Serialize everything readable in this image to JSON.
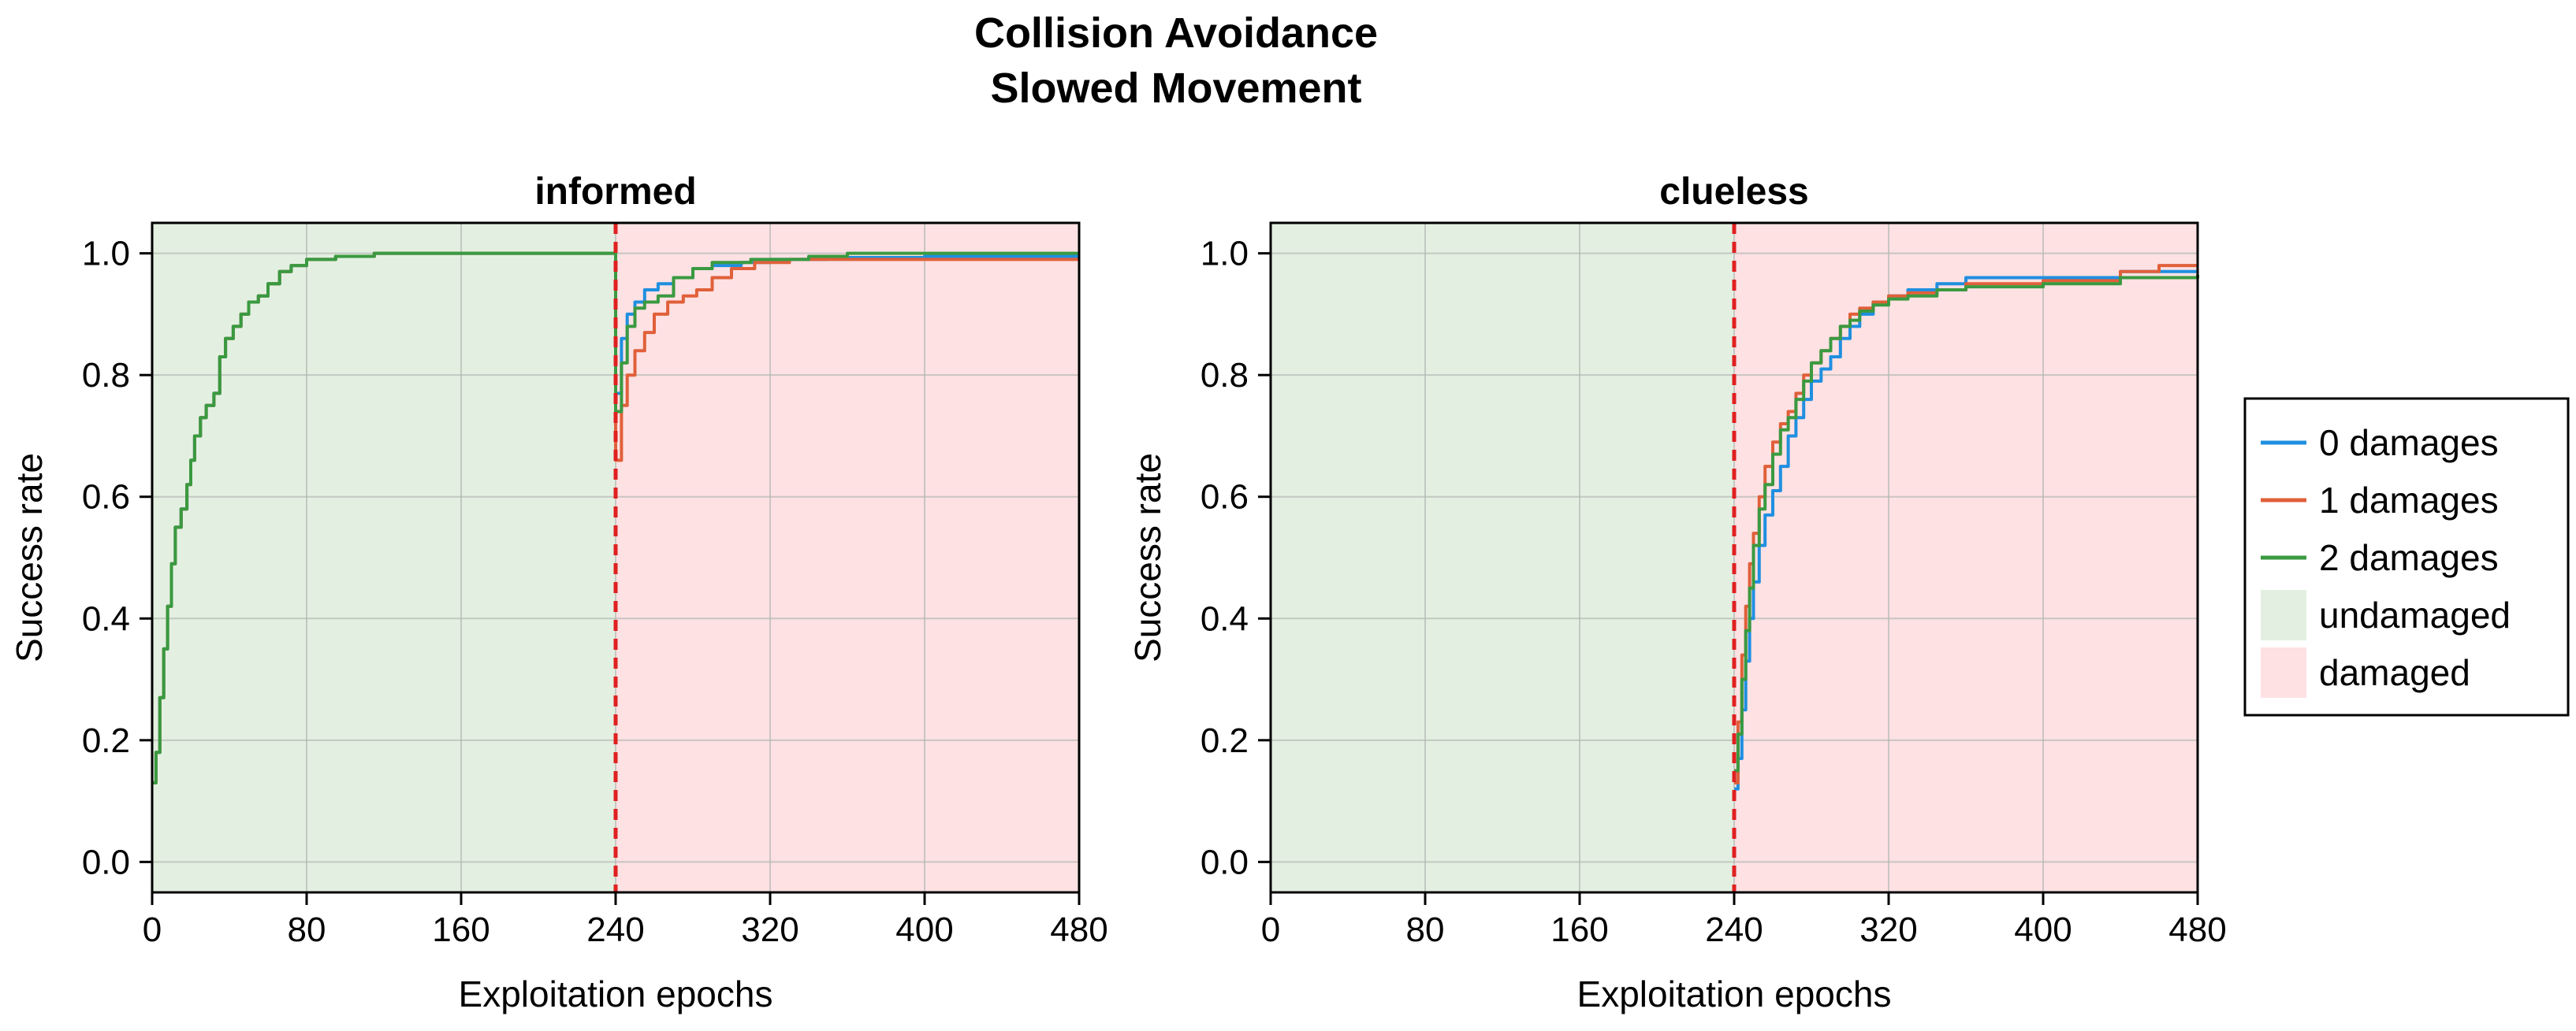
{
  "figure": {
    "title_line1": "Collision Avoidance",
    "title_line2": "Slowed Movement"
  },
  "chart_data": [
    {
      "type": "line",
      "title": "informed",
      "xlabel": "Exploitation epochs",
      "ylabel": "Success rate",
      "xlim": [
        0,
        480
      ],
      "ylim": [
        -0.05,
        1.05
      ],
      "xticks": [
        0,
        80,
        160,
        240,
        320,
        400,
        480
      ],
      "yticks": [
        "0.0",
        "0.2",
        "0.4",
        "0.6",
        "0.8",
        "1.0"
      ],
      "damage_epoch": 240,
      "regions": [
        {
          "name": "undamaged",
          "from": 0,
          "to": 240
        },
        {
          "name": "damaged",
          "from": 240,
          "to": 480
        }
      ],
      "grid": true,
      "series": [
        {
          "name": "0 damages",
          "points": [
            [
              0,
              0.13
            ],
            [
              2,
              0.18
            ],
            [
              4,
              0.27
            ],
            [
              6,
              0.35
            ],
            [
              8,
              0.42
            ],
            [
              10,
              0.49
            ],
            [
              12,
              0.55
            ],
            [
              15,
              0.58
            ],
            [
              18,
              0.62
            ],
            [
              20,
              0.66
            ],
            [
              22,
              0.7
            ],
            [
              25,
              0.73
            ],
            [
              28,
              0.75
            ],
            [
              32,
              0.77
            ],
            [
              35,
              0.83
            ],
            [
              38,
              0.86
            ],
            [
              42,
              0.88
            ],
            [
              46,
              0.9
            ],
            [
              50,
              0.92
            ],
            [
              55,
              0.93
            ],
            [
              60,
              0.95
            ],
            [
              66,
              0.97
            ],
            [
              72,
              0.98
            ],
            [
              80,
              0.99
            ],
            [
              95,
              0.995
            ],
            [
              115,
              1.0
            ],
            [
              239,
              1.0
            ],
            [
              240,
              0.77
            ],
            [
              243,
              0.86
            ],
            [
              246,
              0.9
            ],
            [
              250,
              0.92
            ],
            [
              255,
              0.94
            ],
            [
              262,
              0.95
            ],
            [
              270,
              0.96
            ],
            [
              280,
              0.975
            ],
            [
              290,
              0.98
            ],
            [
              305,
              0.985
            ],
            [
              320,
              0.99
            ],
            [
              350,
              0.993
            ],
            [
              400,
              0.995
            ],
            [
              480,
              0.995
            ]
          ]
        },
        {
          "name": "1 damages",
          "points": [
            [
              0,
              0.13
            ],
            [
              2,
              0.18
            ],
            [
              4,
              0.27
            ],
            [
              6,
              0.35
            ],
            [
              8,
              0.42
            ],
            [
              10,
              0.49
            ],
            [
              12,
              0.55
            ],
            [
              15,
              0.58
            ],
            [
              18,
              0.62
            ],
            [
              20,
              0.66
            ],
            [
              22,
              0.7
            ],
            [
              25,
              0.73
            ],
            [
              28,
              0.75
            ],
            [
              32,
              0.77
            ],
            [
              35,
              0.83
            ],
            [
              38,
              0.86
            ],
            [
              42,
              0.88
            ],
            [
              46,
              0.9
            ],
            [
              50,
              0.92
            ],
            [
              55,
              0.93
            ],
            [
              60,
              0.95
            ],
            [
              66,
              0.97
            ],
            [
              72,
              0.98
            ],
            [
              80,
              0.99
            ],
            [
              95,
              0.995
            ],
            [
              115,
              1.0
            ],
            [
              239,
              1.0
            ],
            [
              240,
              0.66
            ],
            [
              243,
              0.75
            ],
            [
              246,
              0.8
            ],
            [
              250,
              0.84
            ],
            [
              255,
              0.87
            ],
            [
              260,
              0.9
            ],
            [
              267,
              0.92
            ],
            [
              275,
              0.93
            ],
            [
              282,
              0.94
            ],
            [
              290,
              0.96
            ],
            [
              300,
              0.975
            ],
            [
              312,
              0.985
            ],
            [
              330,
              0.99
            ],
            [
              370,
              0.99
            ],
            [
              430,
              0.99
            ],
            [
              480,
              0.99
            ]
          ]
        },
        {
          "name": "2 damages",
          "points": [
            [
              0,
              0.13
            ],
            [
              2,
              0.18
            ],
            [
              4,
              0.27
            ],
            [
              6,
              0.35
            ],
            [
              8,
              0.42
            ],
            [
              10,
              0.49
            ],
            [
              12,
              0.55
            ],
            [
              15,
              0.58
            ],
            [
              18,
              0.62
            ],
            [
              20,
              0.66
            ],
            [
              22,
              0.7
            ],
            [
              25,
              0.73
            ],
            [
              28,
              0.75
            ],
            [
              32,
              0.77
            ],
            [
              35,
              0.83
            ],
            [
              38,
              0.86
            ],
            [
              42,
              0.88
            ],
            [
              46,
              0.9
            ],
            [
              50,
              0.92
            ],
            [
              55,
              0.93
            ],
            [
              60,
              0.95
            ],
            [
              66,
              0.97
            ],
            [
              72,
              0.98
            ],
            [
              80,
              0.99
            ],
            [
              95,
              0.995
            ],
            [
              115,
              1.0
            ],
            [
              239,
              1.0
            ],
            [
              240,
              0.74
            ],
            [
              243,
              0.82
            ],
            [
              246,
              0.88
            ],
            [
              250,
              0.91
            ],
            [
              255,
              0.92
            ],
            [
              262,
              0.93
            ],
            [
              270,
              0.96
            ],
            [
              280,
              0.975
            ],
            [
              290,
              0.985
            ],
            [
              310,
              0.99
            ],
            [
              340,
              0.995
            ],
            [
              360,
              1.0
            ],
            [
              480,
              1.0
            ]
          ]
        }
      ]
    },
    {
      "type": "line",
      "title": "clueless",
      "xlabel": "Exploitation epochs",
      "ylabel": "Success rate",
      "xlim": [
        0,
        480
      ],
      "ylim": [
        -0.05,
        1.05
      ],
      "xticks": [
        0,
        80,
        160,
        240,
        320,
        400,
        480
      ],
      "yticks": [
        "0.0",
        "0.2",
        "0.4",
        "0.6",
        "0.8",
        "1.0"
      ],
      "damage_epoch": 240,
      "regions": [
        {
          "name": "undamaged",
          "from": 0,
          "to": 240
        },
        {
          "name": "damaged",
          "from": 240,
          "to": 480
        }
      ],
      "grid": true,
      "series": [
        {
          "name": "0 damages",
          "points": [
            [
              240,
              0.12
            ],
            [
              242,
              0.17
            ],
            [
              244,
              0.25
            ],
            [
              246,
              0.33
            ],
            [
              248,
              0.4
            ],
            [
              250,
              0.46
            ],
            [
              253,
              0.52
            ],
            [
              256,
              0.57
            ],
            [
              260,
              0.61
            ],
            [
              264,
              0.65
            ],
            [
              268,
              0.7
            ],
            [
              272,
              0.73
            ],
            [
              276,
              0.76
            ],
            [
              280,
              0.79
            ],
            [
              285,
              0.81
            ],
            [
              290,
              0.83
            ],
            [
              295,
              0.86
            ],
            [
              300,
              0.88
            ],
            [
              305,
              0.9
            ],
            [
              312,
              0.92
            ],
            [
              320,
              0.93
            ],
            [
              330,
              0.94
            ],
            [
              345,
              0.95
            ],
            [
              360,
              0.96
            ],
            [
              400,
              0.96
            ],
            [
              440,
              0.97
            ],
            [
              480,
              0.97
            ]
          ]
        },
        {
          "name": "1 damages",
          "points": [
            [
              240,
              0.13
            ],
            [
              242,
              0.23
            ],
            [
              244,
              0.34
            ],
            [
              246,
              0.42
            ],
            [
              248,
              0.49
            ],
            [
              250,
              0.54
            ],
            [
              253,
              0.6
            ],
            [
              256,
              0.65
            ],
            [
              260,
              0.69
            ],
            [
              264,
              0.72
            ],
            [
              268,
              0.74
            ],
            [
              272,
              0.77
            ],
            [
              276,
              0.8
            ],
            [
              280,
              0.82
            ],
            [
              285,
              0.84
            ],
            [
              290,
              0.86
            ],
            [
              295,
              0.88
            ],
            [
              300,
              0.9
            ],
            [
              305,
              0.91
            ],
            [
              312,
              0.92
            ],
            [
              320,
              0.93
            ],
            [
              330,
              0.935
            ],
            [
              345,
              0.94
            ],
            [
              360,
              0.95
            ],
            [
              400,
              0.955
            ],
            [
              440,
              0.97
            ],
            [
              460,
              0.98
            ],
            [
              480,
              0.98
            ]
          ]
        },
        {
          "name": "2 damages",
          "points": [
            [
              240,
              0.15
            ],
            [
              242,
              0.21
            ],
            [
              244,
              0.3
            ],
            [
              246,
              0.38
            ],
            [
              248,
              0.45
            ],
            [
              250,
              0.52
            ],
            [
              253,
              0.58
            ],
            [
              256,
              0.62
            ],
            [
              260,
              0.67
            ],
            [
              264,
              0.71
            ],
            [
              268,
              0.73
            ],
            [
              272,
              0.76
            ],
            [
              276,
              0.79
            ],
            [
              280,
              0.82
            ],
            [
              285,
              0.84
            ],
            [
              290,
              0.86
            ],
            [
              295,
              0.88
            ],
            [
              300,
              0.89
            ],
            [
              305,
              0.905
            ],
            [
              312,
              0.915
            ],
            [
              320,
              0.925
            ],
            [
              330,
              0.93
            ],
            [
              345,
              0.94
            ],
            [
              360,
              0.945
            ],
            [
              400,
              0.95
            ],
            [
              440,
              0.96
            ],
            [
              480,
              0.965
            ]
          ]
        }
      ]
    }
  ],
  "legend": {
    "placement": "right",
    "entries": [
      {
        "label": "0 damages",
        "kind": "line",
        "color": "#1f8fe0"
      },
      {
        "label": "1 damages",
        "kind": "line",
        "color": "#e0603a"
      },
      {
        "label": "2 damages",
        "kind": "line",
        "color": "#3a9a40"
      },
      {
        "label": "undamaged",
        "kind": "patch",
        "color": "#e3f0e1"
      },
      {
        "label": "damaged",
        "kind": "patch",
        "color": "#fde1e3"
      }
    ]
  },
  "colors": {
    "series": [
      "#1f8fe0",
      "#e0603a",
      "#3a9a40"
    ],
    "undamaged_fill": "#e3f0e1",
    "damaged_fill": "#fde1e3",
    "damage_line": "#e02020",
    "grid": "#b4b8b4"
  }
}
